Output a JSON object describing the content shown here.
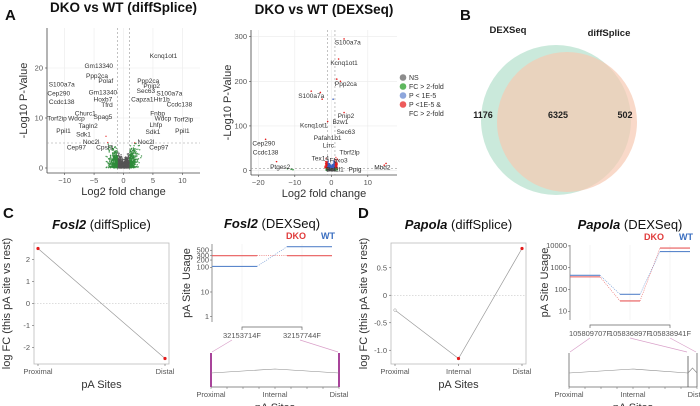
{
  "chart_data": [
    {
      "id": "A1",
      "panel": "A",
      "type": "scatter",
      "title": "DKO vs WT (diffSplice)",
      "xlabel": "Log2 fold change",
      "ylabel": "-Log10 P-Value",
      "xlim": [
        -13,
        13
      ],
      "ylim": [
        -1,
        28
      ],
      "xticks": [
        -10,
        -5,
        0,
        5,
        10
      ],
      "yticks": [
        0,
        10,
        20
      ],
      "vlines": [
        -1,
        1
      ],
      "hline": 5,
      "grid": true,
      "labels": [
        {
          "text": "Kcnq1ot1",
          "x": 6.8,
          "y": 22
        },
        {
          "text": "Gm13340",
          "x": -4.2,
          "y": 20
        },
        {
          "text": "Ppp2ca",
          "x": -4.5,
          "y": 18
        },
        {
          "text": "Polaf",
          "x": -3.0,
          "y": 17
        },
        {
          "text": "S100a7a",
          "x": -10.5,
          "y": 16.3
        },
        {
          "text": "Ppp2ca",
          "x": 4.2,
          "y": 17
        },
        {
          "text": "Pnip2",
          "x": 4.8,
          "y": 16
        },
        {
          "text": "Sec63",
          "x": 3.8,
          "y": 15
        },
        {
          "text": "S100a7a",
          "x": 7.8,
          "y": 14.5
        },
        {
          "text": "Cep290",
          "x": -11.0,
          "y": 14.5
        },
        {
          "text": "Gm13340",
          "x": -3.5,
          "y": 14.7
        },
        {
          "text": "Hoxb7",
          "x": -3.5,
          "y": 13.3
        },
        {
          "text": "Capza1",
          "x": 3.2,
          "y": 13.3
        },
        {
          "text": "Htr1b",
          "x": 6.5,
          "y": 13.3
        },
        {
          "text": "Ccdc138",
          "x": -10.5,
          "y": 12.8
        },
        {
          "text": "Tfrd",
          "x": -2.8,
          "y": 12.2
        },
        {
          "text": "Ccdc138",
          "x": 9.5,
          "y": 12.3
        },
        {
          "text": "Churc1",
          "x": -6.5,
          "y": 10.5
        },
        {
          "text": "Fnbp",
          "x": 5.8,
          "y": 10.5
        },
        {
          "text": "Torf2ip",
          "x": -11.3,
          "y": 9.5
        },
        {
          "text": "Wdcp",
          "x": -8.0,
          "y": 9.5
        },
        {
          "text": "Spag5",
          "x": -3.5,
          "y": 9.8
        },
        {
          "text": "Wdcp",
          "x": 6.7,
          "y": 9.5
        },
        {
          "text": "Torf2ip",
          "x": 10.2,
          "y": 9.3
        },
        {
          "text": "Tagln2",
          "x": -6.0,
          "y": 8
        },
        {
          "text": "Lhfp",
          "x": 5.5,
          "y": 8.2
        },
        {
          "text": "Ppil1",
          "x": -10.2,
          "y": 7
        },
        {
          "text": "Sdk1",
          "x": -6.8,
          "y": 6.3
        },
        {
          "text": "Sdk1",
          "x": 5.0,
          "y": 6.8
        },
        {
          "text": "Ppil1",
          "x": 10.0,
          "y": 7
        },
        {
          "text": "Noc2l",
          "x": -5.5,
          "y": 4.8
        },
        {
          "text": "Noc2l",
          "x": 3.8,
          "y": 4.8
        },
        {
          "text": "Cep97",
          "x": -8.0,
          "y": 3.7
        },
        {
          "text": "Cpsf3",
          "x": -3.2,
          "y": 3.7
        },
        {
          "text": "Cep97",
          "x": 6.0,
          "y": 3.7
        }
      ]
    },
    {
      "id": "A2",
      "panel": "A",
      "type": "scatter",
      "title": "DKO vs WT (DEXSeq)",
      "xlabel": "Log2 fold change",
      "ylabel": "-Log10 P-Value",
      "xlim": [
        -22,
        18
      ],
      "ylim": [
        -10,
        315
      ],
      "xticks": [
        -20,
        -10,
        0,
        10
      ],
      "yticks": [
        0,
        100,
        200,
        300
      ],
      "vlines": [
        -1,
        1
      ],
      "hline": 5,
      "grid": true,
      "labels": [
        {
          "text": "S100a7a",
          "x": 4.5,
          "y": 282
        },
        {
          "text": "Kcnq1ot1",
          "x": 3.5,
          "y": 236
        },
        {
          "text": "Ppp2ca",
          "x": 4.0,
          "y": 190
        },
        {
          "text": "S100a7a",
          "x": -5.5,
          "y": 163
        },
        {
          "text": "Pnip2",
          "x": 4.0,
          "y": 118
        },
        {
          "text": "Bzw1",
          "x": 2.5,
          "y": 104
        },
        {
          "text": "Kcnq1ot1",
          "x": -4.8,
          "y": 96
        },
        {
          "text": "Sec63",
          "x": 4.0,
          "y": 82
        },
        {
          "text": "Pafah1b1",
          "x": -1.0,
          "y": 68
        },
        {
          "text": "Cep290",
          "x": -18.5,
          "y": 56
        },
        {
          "text": "Lrrc",
          "x": -0.8,
          "y": 52
        },
        {
          "text": "Ccdc138",
          "x": -18.0,
          "y": 36
        },
        {
          "text": "Tbrf2lp",
          "x": 5.0,
          "y": 36
        },
        {
          "text": "Tex14",
          "x": -3.0,
          "y": 22
        },
        {
          "text": "Fbxo3",
          "x": 2.0,
          "y": 18
        },
        {
          "text": "Ptges2",
          "x": -14.0,
          "y": 3
        },
        {
          "text": "Bcl2l1",
          "x": 1.0,
          "y": -2
        },
        {
          "text": "Ppig",
          "x": 6.5,
          "y": -2
        },
        {
          "text": "Mbd2",
          "x": 14.0,
          "y": 2
        }
      ]
    },
    {
      "id": "B",
      "panel": "B",
      "type": "venn",
      "sets": [
        {
          "name": "DEXSeq",
          "color": "#b8e2cf"
        },
        {
          "name": "diffSplice",
          "color": "#f7c9b2"
        }
      ],
      "values": {
        "DEXSeq_only": 1176,
        "both": 6325,
        "diffSplice_only": 502
      }
    },
    {
      "id": "C1",
      "panel": "C",
      "type": "line",
      "title_gene": "Fosl2",
      "title_method": "(diffSplice)",
      "xlabel": "pA Sites",
      "ylabel": "log FC (this pA site vs rest)",
      "categories": [
        "Proximal",
        "Distal"
      ],
      "values": [
        2.5,
        -2.5
      ],
      "ylim": [
        -2.75,
        2.75
      ],
      "yticks": [
        -2,
        -1,
        0,
        1,
        2
      ],
      "significant": [
        true,
        true
      ]
    },
    {
      "id": "C2",
      "panel": "C",
      "type": "line",
      "title_gene": "Fosl2",
      "title_method": "(DEXSeq)",
      "ylabel": "pA Site Usage",
      "xlabel": "pA Sites",
      "yscale": "log",
      "yticks": [
        1,
        10,
        100,
        200,
        300,
        500
      ],
      "sites": [
        "32153714F",
        "32157744F"
      ],
      "series": [
        {
          "name": "DKO",
          "color": "#e85a5a",
          "values": [
            300,
            300
          ]
        },
        {
          "name": "WT",
          "color": "#5b87cc",
          "values": [
            110,
            700
          ]
        }
      ],
      "gene_model_ticks": [
        "Proximal",
        "Internal",
        "Distal"
      ]
    },
    {
      "id": "D1",
      "panel": "D",
      "type": "line",
      "title_gene": "Papola",
      "title_method": "(diffSplice)",
      "xlabel": "pA Sites",
      "ylabel": "log FC (this pA site vs rest)",
      "categories": [
        "Proximal",
        "Internal",
        "Distal"
      ],
      "values": [
        -0.27,
        -1.15,
        0.85
      ],
      "ylim": [
        -1.25,
        0.95
      ],
      "yticks": [
        -1.0,
        -0.5,
        0,
        0.5
      ],
      "ytick_labels": [
        "-1.0",
        "-0.5",
        "0",
        "0.5"
      ],
      "significant": [
        false,
        true,
        true
      ]
    },
    {
      "id": "D2",
      "panel": "D",
      "type": "line",
      "title_gene": "Papola",
      "title_method": "(DEXSeq)",
      "ylabel": "pA Site Usage",
      "xlabel": "pA Sites",
      "yscale": "log",
      "yticks": [
        10,
        100,
        1000,
        10000
      ],
      "sites": [
        "105809707F",
        "105836897F",
        "105838941F"
      ],
      "series": [
        {
          "name": "DKO",
          "color": "#e85a5a",
          "values": [
            380,
            30,
            8000
          ]
        },
        {
          "name": "WT",
          "color": "#5b87cc",
          "values": [
            450,
            60,
            5500
          ]
        }
      ],
      "gene_model_ticks": [
        "Proximal",
        "Internal",
        "Distal"
      ]
    }
  ],
  "legend": {
    "items": [
      {
        "label": "NS",
        "color": "#8c8c8c"
      },
      {
        "label": "FC > 2-fold",
        "color": "#5fb85f"
      },
      {
        "label": "P < 1E-5",
        "color": "#8ea6dc"
      },
      {
        "label": "P <1E-5 &",
        "label2": "FC > 2-fold",
        "color": "#ee5b5b"
      }
    ]
  },
  "panels": {
    "A": "A",
    "B": "B",
    "C": "C",
    "D": "D"
  },
  "colors": {
    "ns": "#555555",
    "fc": "#2e8b3a",
    "p": "#3a5fc0",
    "both": "#e41a1a",
    "dko": "#e03a3a",
    "wt": "#3a6ec0"
  }
}
